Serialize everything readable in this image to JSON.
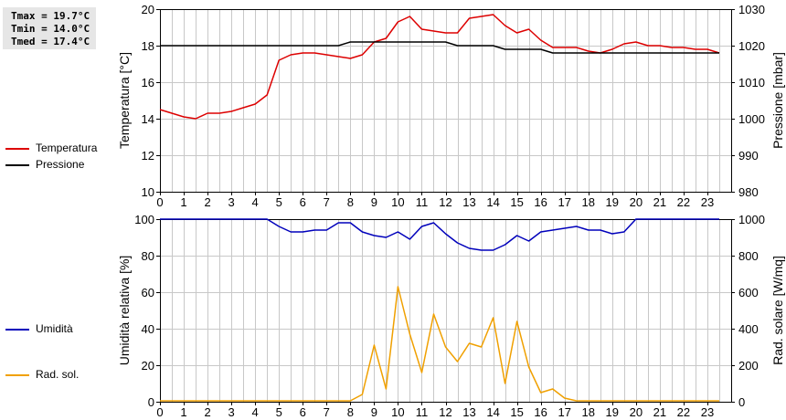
{
  "stats": {
    "tmax": "Tmax = 19.7°C",
    "tmin": "Tmin = 14.0°C",
    "tmed": "Tmed = 17.4°C"
  },
  "legend_top": [
    {
      "label": "Temperatura",
      "color": "#dd0000"
    },
    {
      "label": "Pressione",
      "color": "#000000"
    }
  ],
  "legend_bottom": [
    {
      "label": "Umidità",
      "color": "#0000bb"
    },
    {
      "label": "Rad. sol.",
      "color": "#f0a000"
    }
  ],
  "chart_data": [
    {
      "type": "line",
      "xlabel": "",
      "ylabel": "Temperatura [°C]",
      "y2label": "Pressione [mbar]",
      "xlim": [
        0,
        24
      ],
      "ylim": [
        10,
        20
      ],
      "y2lim": [
        980,
        1030
      ],
      "xticks": [
        "0",
        "1",
        "2",
        "3",
        "4",
        "5",
        "6",
        "7",
        "8",
        "9",
        "10",
        "11",
        "12",
        "13",
        "14",
        "15",
        "16",
        "17",
        "18",
        "19",
        "20",
        "21",
        "22",
        "23"
      ],
      "yticks": [
        "10",
        "12",
        "14",
        "16",
        "18",
        "20"
      ],
      "y2ticks": [
        "980",
        "990",
        "1000",
        "1010",
        "1020",
        "1030"
      ],
      "grid": true,
      "series": [
        {
          "name": "Temperatura",
          "axis": "left",
          "color": "#dd0000",
          "x": [
            0,
            0.5,
            1,
            1.5,
            2,
            2.5,
            3,
            3.5,
            4,
            4.5,
            5,
            5.5,
            6,
            6.5,
            7,
            7.5,
            8,
            8.5,
            9,
            9.5,
            10,
            10.5,
            11,
            11.5,
            12,
            12.5,
            13,
            13.5,
            14,
            14.5,
            15,
            15.5,
            16,
            16.5,
            17,
            17.5,
            18,
            18.5,
            19,
            19.5,
            20,
            20.5,
            21,
            21.5,
            22,
            22.5,
            23,
            23.5
          ],
          "values": [
            14.5,
            14.3,
            14.1,
            14.0,
            14.3,
            14.3,
            14.4,
            14.6,
            14.8,
            15.3,
            17.2,
            17.5,
            17.6,
            17.6,
            17.5,
            17.4,
            17.3,
            17.5,
            18.2,
            18.4,
            19.3,
            19.6,
            18.9,
            18.8,
            18.7,
            18.7,
            19.5,
            19.6,
            19.7,
            19.1,
            18.7,
            18.9,
            18.3,
            17.9,
            17.9,
            17.9,
            17.7,
            17.6,
            17.8,
            18.1,
            18.2,
            18.0,
            18.0,
            17.9,
            17.9,
            17.8,
            17.8,
            17.6
          ]
        },
        {
          "name": "Pressione",
          "axis": "right",
          "color": "#000000",
          "x": [
            0,
            0.5,
            1,
            1.5,
            2,
            2.5,
            3,
            3.5,
            4,
            4.5,
            5,
            5.5,
            6,
            6.5,
            7,
            7.5,
            8,
            8.5,
            9,
            9.5,
            10,
            10.5,
            11,
            11.5,
            12,
            12.5,
            13,
            13.5,
            14,
            14.5,
            15,
            15.5,
            16,
            16.5,
            17,
            17.5,
            18,
            18.5,
            19,
            19.5,
            20,
            20.5,
            21,
            21.5,
            22,
            22.5,
            23,
            23.5
          ],
          "values": [
            1020,
            1020,
            1020,
            1020,
            1020,
            1020,
            1020,
            1020,
            1020,
            1020,
            1020,
            1020,
            1020,
            1020,
            1020,
            1020,
            1021,
            1021,
            1021,
            1021,
            1021,
            1021,
            1021,
            1021,
            1021,
            1020,
            1020,
            1020,
            1020,
            1019,
            1019,
            1019,
            1019,
            1018,
            1018,
            1018,
            1018,
            1018,
            1018,
            1018,
            1018,
            1018,
            1018,
            1018,
            1018,
            1018,
            1018,
            1018
          ]
        }
      ]
    },
    {
      "type": "line",
      "xlabel": "",
      "ylabel": "Umidità relativa [%]",
      "y2label": "Rad. solare [W/mq]",
      "xlim": [
        0,
        24
      ],
      "ylim": [
        0,
        100
      ],
      "y2lim": [
        0,
        1000
      ],
      "xticks": [
        "0",
        "1",
        "2",
        "3",
        "4",
        "5",
        "6",
        "7",
        "8",
        "9",
        "10",
        "11",
        "12",
        "13",
        "14",
        "15",
        "16",
        "17",
        "18",
        "19",
        "20",
        "21",
        "22",
        "23"
      ],
      "yticks": [
        "0",
        "20",
        "40",
        "60",
        "80",
        "100"
      ],
      "y2ticks": [
        "0",
        "200",
        "400",
        "600",
        "800",
        "1000"
      ],
      "grid": true,
      "series": [
        {
          "name": "Umidità",
          "axis": "left",
          "color": "#0000bb",
          "x": [
            0,
            0.5,
            1,
            1.5,
            2,
            2.5,
            3,
            3.5,
            4,
            4.5,
            5,
            5.5,
            6,
            6.5,
            7,
            7.5,
            8,
            8.5,
            9,
            9.5,
            10,
            10.5,
            11,
            11.5,
            12,
            12.5,
            13,
            13.5,
            14,
            14.5,
            15,
            15.5,
            16,
            16.5,
            17,
            17.5,
            18,
            18.5,
            19,
            19.5,
            20,
            20.5,
            21,
            21.5,
            22,
            22.5,
            23,
            23.5
          ],
          "values": [
            100,
            100,
            100,
            100,
            100,
            100,
            100,
            100,
            100,
            100,
            96,
            93,
            93,
            94,
            94,
            98,
            98,
            93,
            91,
            90,
            93,
            89,
            96,
            98,
            92,
            87,
            84,
            83,
            83,
            86,
            91,
            88,
            93,
            94,
            95,
            96,
            94,
            94,
            92,
            93,
            100,
            100,
            100,
            100,
            100,
            100,
            100,
            100
          ]
        },
        {
          "name": "Rad. sol.",
          "axis": "right",
          "color": "#f0a000",
          "x": [
            0,
            0.5,
            1,
            1.5,
            2,
            2.5,
            3,
            3.5,
            4,
            4.5,
            5,
            5.5,
            6,
            6.5,
            7,
            7.5,
            8,
            8.5,
            9,
            9.5,
            10,
            10.5,
            11,
            11.5,
            12,
            12.5,
            13,
            13.5,
            14,
            14.5,
            15,
            15.5,
            16,
            16.5,
            17,
            17.5,
            18,
            18.5,
            19,
            19.5,
            20,
            20.5,
            21,
            21.5,
            22,
            22.5,
            23,
            23.5
          ],
          "values": [
            5,
            5,
            5,
            5,
            5,
            5,
            5,
            5,
            5,
            5,
            5,
            5,
            5,
            5,
            5,
            5,
            5,
            40,
            310,
            70,
            630,
            370,
            160,
            480,
            300,
            220,
            320,
            300,
            460,
            100,
            440,
            190,
            50,
            70,
            20,
            5,
            5,
            5,
            5,
            5,
            5,
            5,
            5,
            5,
            5,
            5,
            5,
            5
          ]
        }
      ]
    }
  ]
}
